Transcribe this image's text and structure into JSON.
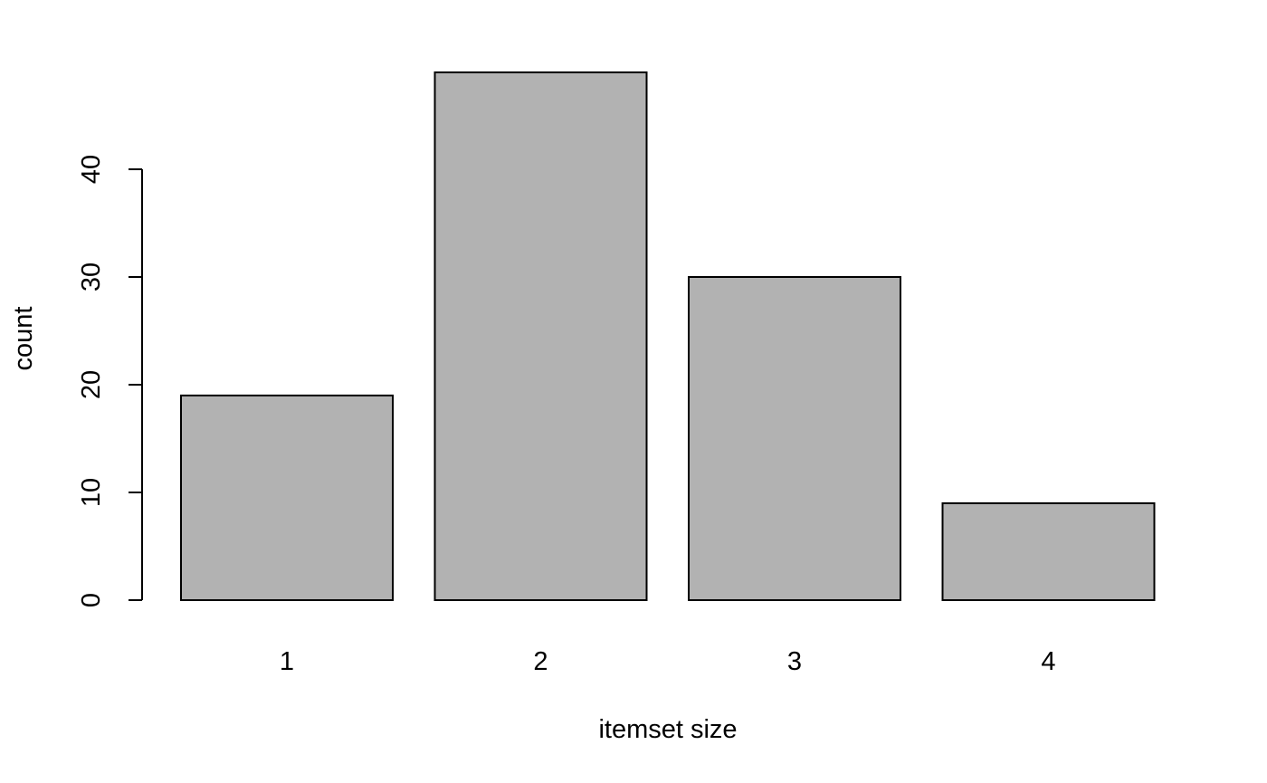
{
  "chart_data": {
    "type": "bar",
    "title": "",
    "xlabel": "itemset size",
    "ylabel": "count",
    "categories": [
      "1",
      "2",
      "3",
      "4"
    ],
    "values": [
      19,
      49,
      30,
      9
    ],
    "ylim": [
      0,
      49
    ],
    "yticks": [
      "0",
      "10",
      "20",
      "30",
      "40"
    ],
    "grid": false,
    "legend": "none",
    "colors": {
      "bar_fill": "#b2b2b2",
      "bar_stroke": "#000000",
      "axis": "#000000",
      "background": "#ffffff"
    }
  }
}
